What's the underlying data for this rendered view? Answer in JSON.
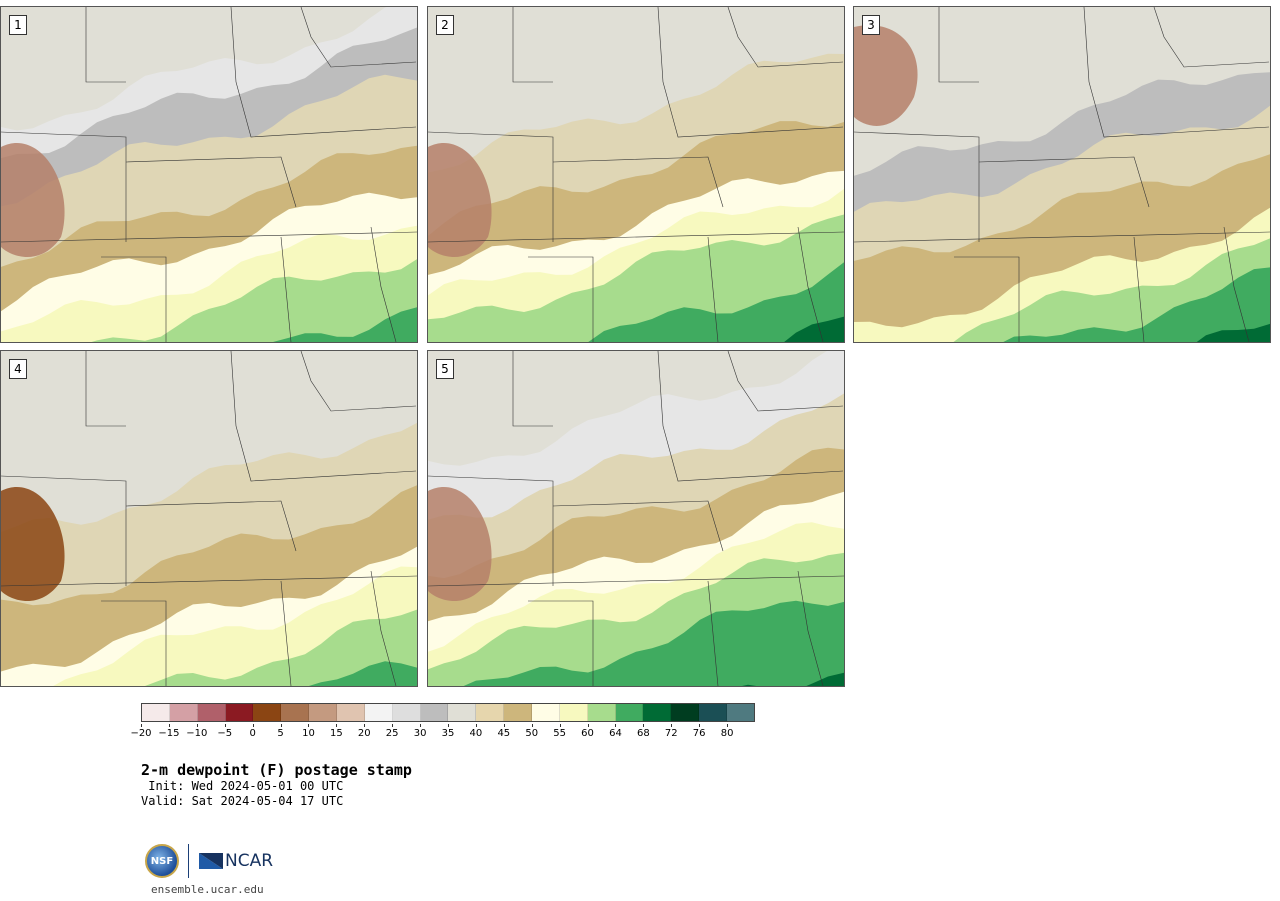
{
  "panels": [
    {
      "label": "1",
      "bands": [
        {
          "c": "#e6e6e6",
          "y": 0
        },
        {
          "c": "#bdbdbd",
          "y": 0.08
        },
        {
          "c": "#dfd6b5",
          "y": 0.2
        },
        {
          "c": "#cdb67c",
          "y": 0.4
        },
        {
          "c": "#fffde6",
          "y": 0.52
        },
        {
          "c": "#f7f9bf",
          "y": 0.62
        },
        {
          "c": "#a7dc8d",
          "y": 0.72
        },
        {
          "c": "#40ab60",
          "y": 0.88
        }
      ],
      "brown": true
    },
    {
      "label": "2",
      "bands": [
        {
          "c": "#e0dfd6",
          "y": 0
        },
        {
          "c": "#dfd6b5",
          "y": 0.12
        },
        {
          "c": "#cdb67c",
          "y": 0.3
        },
        {
          "c": "#fffde6",
          "y": 0.45
        },
        {
          "c": "#f7f9bf",
          "y": 0.52
        },
        {
          "c": "#a7dc8d",
          "y": 0.6
        },
        {
          "c": "#40ab60",
          "y": 0.78
        },
        {
          "c": "#006b35",
          "y": 0.93
        }
      ],
      "brown": true
    },
    {
      "label": "3",
      "bands": [
        {
          "c": "#e0dfd6",
          "y": 0
        },
        {
          "c": "#bdbdbd",
          "y": 0.15
        },
        {
          "c": "#dfd6b5",
          "y": 0.28
        },
        {
          "c": "#cdb67c",
          "y": 0.42
        },
        {
          "c": "#f7f9bf",
          "y": 0.62
        },
        {
          "c": "#a7dc8d",
          "y": 0.7
        },
        {
          "c": "#40ab60",
          "y": 0.8
        },
        {
          "c": "#006b35",
          "y": 0.95
        }
      ],
      "brown": true
    },
    {
      "label": "4",
      "bands": [
        {
          "c": "#e0dfd6",
          "y": 0
        },
        {
          "c": "#dfd6b5",
          "y": 0.2
        },
        {
          "c": "#cdb67c",
          "y": 0.42
        },
        {
          "c": "#fffde6",
          "y": 0.6
        },
        {
          "c": "#f7f9bf",
          "y": 0.66
        },
        {
          "c": "#a7dc8d",
          "y": 0.78
        },
        {
          "c": "#40ab60",
          "y": 0.92
        }
      ],
      "brown": true
    },
    {
      "label": "5",
      "bands": [
        {
          "c": "#e6e6e6",
          "y": 0
        },
        {
          "c": "#dfd6b5",
          "y": 0.15
        },
        {
          "c": "#cdb67c",
          "y": 0.3
        },
        {
          "c": "#fffde6",
          "y": 0.43
        },
        {
          "c": "#f7f9bf",
          "y": 0.5
        },
        {
          "c": "#a7dc8d",
          "y": 0.58
        },
        {
          "c": "#40ab60",
          "y": 0.7
        },
        {
          "c": "#006b35",
          "y": 0.93
        }
      ],
      "brown": true
    }
  ],
  "colorbar": {
    "colors": [
      "#f5eaea",
      "#d4a0a5",
      "#b0606a",
      "#8b1a22",
      "#8b4513",
      "#a87350",
      "#c49a80",
      "#e0c4b0",
      "#f3f3f3",
      "#dedede",
      "#bdbdbd",
      "#e0dfd6",
      "#e6d6ad",
      "#cdb67c",
      "#fffde6",
      "#f7f9bf",
      "#a7dc8d",
      "#40ab60",
      "#006b35",
      "#003d20",
      "#1b4f55",
      "#4f7a80"
    ],
    "ticks": [
      "−20",
      "−15",
      "−10",
      "−5",
      "0",
      "5",
      "10",
      "15",
      "20",
      "25",
      "30",
      "35",
      "40",
      "45",
      "50",
      "55",
      "60",
      "64",
      "68",
      "72",
      "76",
      "80"
    ]
  },
  "title": "2-m dewpoint (F) postage stamp",
  "init": " Init: Wed 2024-05-01 00 UTC",
  "valid": "Valid: Sat 2024-05-04 17 UTC",
  "logos": {
    "nsf": "NSF",
    "ncar": "NCAR"
  },
  "site": "ensemble.ucar.edu"
}
